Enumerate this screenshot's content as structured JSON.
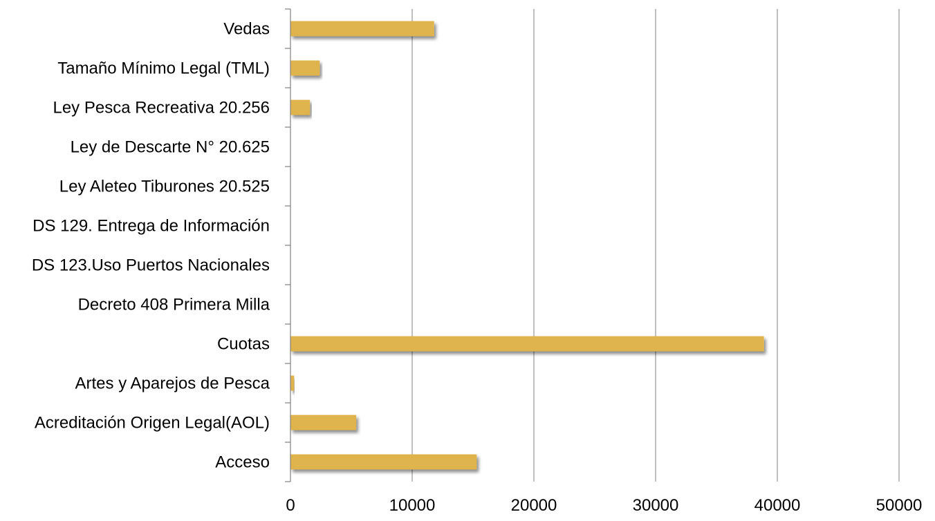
{
  "chart_data": {
    "type": "bar",
    "orientation": "horizontal",
    "title": "",
    "xlabel": "",
    "ylabel": "",
    "categories": [
      "Vedas",
      "Tamaño Mínimo Legal (TML)",
      "Ley Pesca Recreativa 20.256",
      "Ley de Descarte N° 20.625",
      "Ley Aleteo Tiburones 20.525",
      "DS 129. Entrega de Información",
      "DS 123.Uso Puertos Nacionales",
      "Decreto 408 Primera Milla",
      "Cuotas",
      "Artes y Aparejos de Pesca",
      "Acreditación Origen Legal(AOL)",
      "Acceso"
    ],
    "values": [
      11800,
      2400,
      1600,
      0,
      0,
      0,
      0,
      0,
      38900,
      300,
      5400,
      15300
    ],
    "xlim": [
      0,
      50000
    ],
    "xticks": [
      "0",
      "10000",
      "20000",
      "30000",
      "40000",
      "50000"
    ],
    "grid": true,
    "legend": "none",
    "bar_color": "#e0b44e",
    "bar_shadow_color": "#b8b8b8"
  }
}
